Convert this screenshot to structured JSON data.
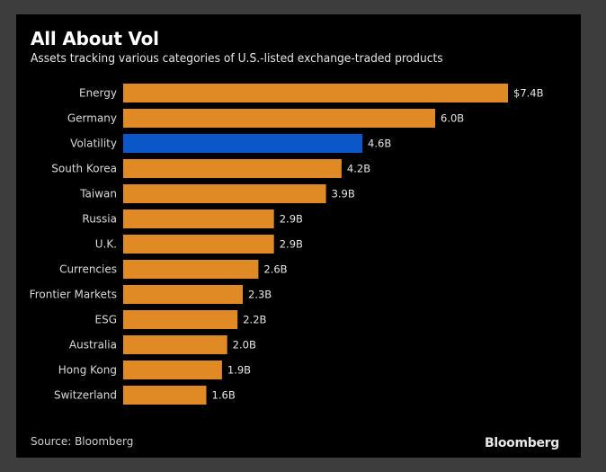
{
  "chart_data": {
    "type": "bar",
    "orientation": "horizontal",
    "title": "All About Vol",
    "subtitle": "Assets tracking various categories of U.S.-listed exchange-traded products",
    "xlabel": "",
    "ylabel": "",
    "unit": "billion USD",
    "categories": [
      "Energy",
      "Germany",
      "Volatility",
      "South Korea",
      "Taiwan",
      "Russia",
      "U.K.",
      "Currencies",
      "Frontier Markets",
      "ESG",
      "Australia",
      "Hong Kong",
      "Switzerland"
    ],
    "values": [
      7.4,
      6.0,
      4.6,
      4.2,
      3.9,
      2.9,
      2.9,
      2.6,
      2.3,
      2.2,
      2.0,
      1.9,
      1.6
    ],
    "value_labels": [
      "$7.4B",
      "6.0B",
      "4.6B",
      "4.2B",
      "3.9B",
      "2.9B",
      "2.9B",
      "2.6B",
      "2.3B",
      "2.2B",
      "2.0B",
      "1.9B",
      "1.6B"
    ],
    "highlight_category": "Volatility",
    "xlim": [
      0,
      7.4
    ],
    "grid": false,
    "legend": "none",
    "colors": {
      "default": "#e08a26",
      "highlight": "#0b57c9"
    },
    "source": "Source: Bloomberg",
    "brand": "Bloomberg"
  },
  "colors": {
    "background": "#000000",
    "frame": "#3d3d3d",
    "title": "#ffffff"
  }
}
